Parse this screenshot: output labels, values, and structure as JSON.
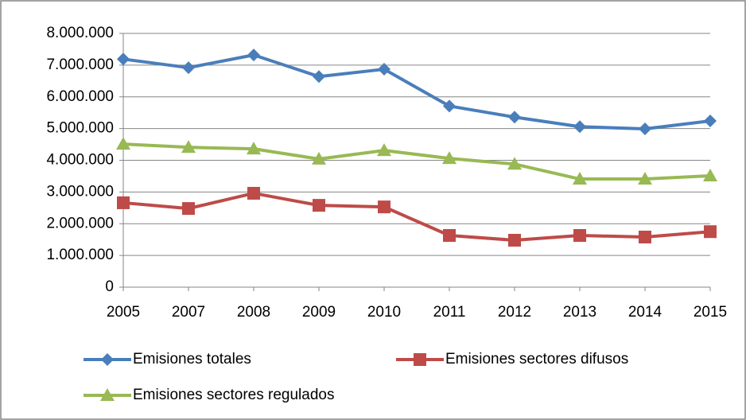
{
  "chart_data": {
    "type": "line",
    "categories": [
      "2005",
      "2007",
      "2008",
      "2009",
      "2010",
      "2011",
      "2012",
      "2013",
      "2014",
      "2015"
    ],
    "series": [
      {
        "name": "Emisiones totales",
        "color": "#4a7ebb",
        "marker": "diamond",
        "values": [
          7190000,
          6920000,
          7320000,
          6640000,
          6870000,
          5710000,
          5360000,
          5060000,
          4990000,
          5240000
        ]
      },
      {
        "name": "Emisiones sectores difusos",
        "color": "#be4b48",
        "marker": "square",
        "values": [
          2660000,
          2480000,
          2960000,
          2580000,
          2530000,
          1630000,
          1480000,
          1630000,
          1580000,
          1750000
        ]
      },
      {
        "name": "Emisiones sectores regulados",
        "color": "#98b954",
        "marker": "triangle",
        "values": [
          4510000,
          4410000,
          4360000,
          4040000,
          4310000,
          4060000,
          3880000,
          3410000,
          3410000,
          3510000
        ]
      }
    ],
    "ylim": [
      0,
      8000000
    ],
    "yticks": [
      0,
      {
        "value": 1000000,
        "label": "1.000.000"
      },
      {
        "value": 2000000,
        "label": "2.000.000"
      },
      {
        "value": 3000000,
        "label": "3.000.000"
      },
      {
        "value": 4000000,
        "label": "4.000.000"
      },
      {
        "value": 5000000,
        "label": "5.000.000"
      },
      {
        "value": 6000000,
        "label": "6.000.000"
      },
      {
        "value": 7000000,
        "label": "7.000.000"
      },
      {
        "value": 8000000,
        "label": "8.000.000"
      }
    ],
    "grid": true,
    "legend": "bottom"
  }
}
